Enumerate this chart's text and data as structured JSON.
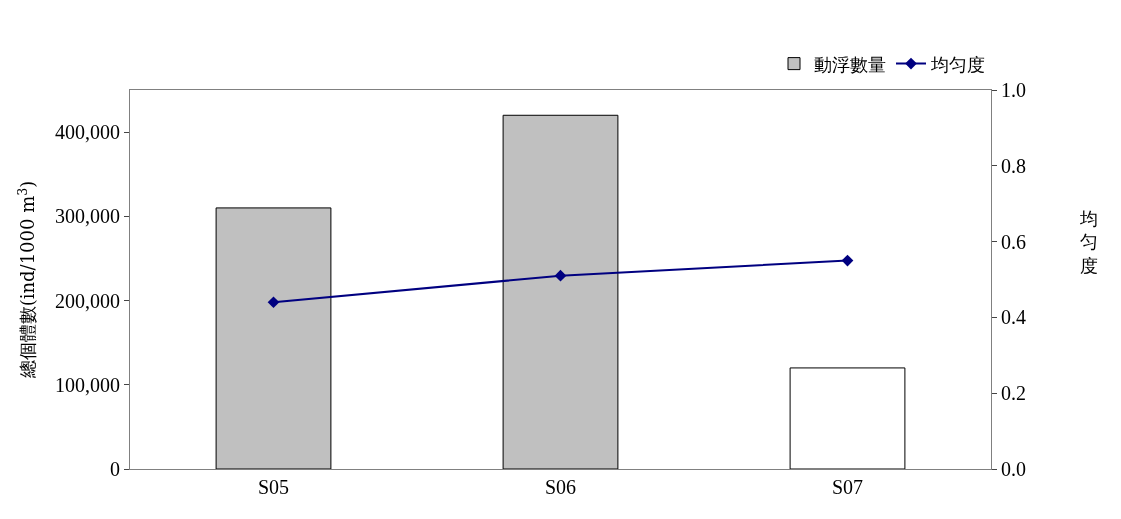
{
  "chart_data": {
    "type": "bar",
    "categories": [
      "S05",
      "S06",
      "S07"
    ],
    "ylabel": "總個體數(ind/1000 m$^{3}$)",
    "y2label": "均匀度",
    "series": [
      {
        "name": "動浮數量",
        "colors": [
          "#c0c0c0",
          "#c0c0c0",
          "#ffffff"
        ],
        "values": [
          310000,
          420000,
          120000
        ]
      },
      {
        "name": "均匀度",
        "type": "line",
        "axis": "y2",
        "color": "#000080",
        "marker": "diamond",
        "values": [
          0.44,
          0.51,
          0.55
        ]
      }
    ],
    "ylim": [
      0,
      450000
    ],
    "yticks": [
      {
        "value": 0,
        "label": "0"
      },
      {
        "value": 100000,
        "label": "100,000"
      },
      {
        "value": 200000,
        "label": "200,000"
      },
      {
        "value": 300000,
        "label": "300,000"
      },
      {
        "value": 400000,
        "label": "400,000"
      }
    ],
    "y2lim": [
      0,
      1
    ],
    "y2ticks": [
      {
        "value": 0,
        "label": "0.0"
      },
      {
        "value": 0.2,
        "label": "0.2"
      },
      {
        "value": 0.4,
        "label": "0.4"
      },
      {
        "value": 0.6,
        "label": "0.6"
      },
      {
        "value": 0.8,
        "label": "0.8"
      },
      {
        "value": 1,
        "label": "1.0"
      }
    ],
    "legend": "top right"
  }
}
